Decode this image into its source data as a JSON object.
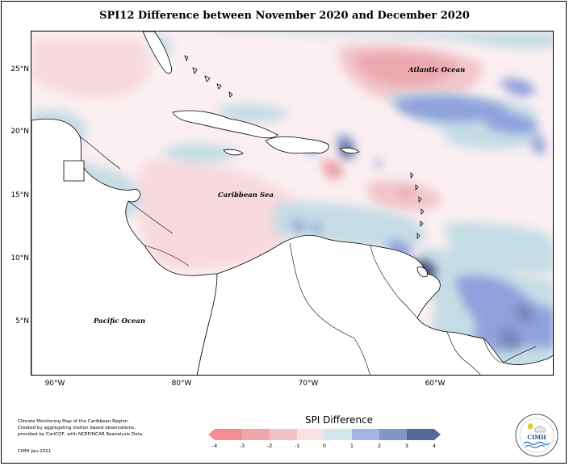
{
  "title": "SPI12 Difference between November 2020 and December 2020",
  "map": {
    "lat_labels": [
      "25°N",
      "20°N",
      "15°N",
      "10°N",
      "5°N"
    ],
    "lon_labels": [
      "90°W",
      "80°W",
      "70°W",
      "60°W"
    ],
    "place_labels": {
      "atlantic": "Atlantic Ocean",
      "caribbean": "Caribbean Sea",
      "pacific": "Pacific Ocean"
    },
    "colors": {
      "land": "#ffffff",
      "coast": "#000000",
      "neg1": "#fbeff1",
      "neg2": "#f2c6cb",
      "neg3": "#eaa2aa",
      "neg4": "#f27c83",
      "pos1": "#c6dde5",
      "pos2": "#8fa1dc",
      "pos3": "#6f86b2",
      "pos4": "#3e4a78"
    }
  },
  "legend": {
    "title": "SPI Difference",
    "ticks": [
      "-4",
      "-3",
      "-2",
      "-1",
      "0",
      "1",
      "2",
      "3",
      "4"
    ],
    "colors": [
      "#f48d92",
      "#eda7ad",
      "#f0c2c6",
      "#f9e1e3",
      "#d3e6ec",
      "#a6b3e3",
      "#7f96c6",
      "#56689a"
    ]
  },
  "credit": {
    "lines": [
      "Climate Monitoring Map of the Caribbean Region.",
      "Created by aggregating station based observations,",
      "provided by CariCOF, with NCEP/NCAR Reanalysis Data."
    ],
    "date": "CIMH Jan-2021"
  },
  "logo": {
    "text": "CIMH"
  }
}
